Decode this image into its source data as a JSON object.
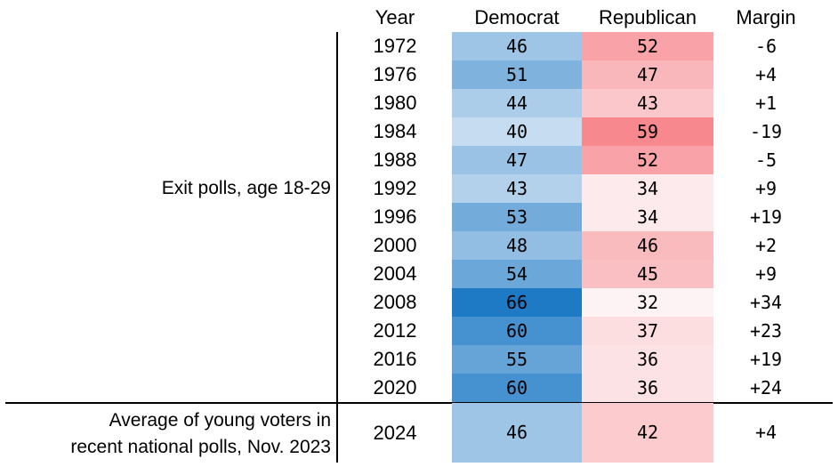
{
  "columns": {
    "year": "Year",
    "dem": "Democrat",
    "rep": "Republican",
    "margin": "Margin"
  },
  "groups": {
    "exit": "Exit polls, age 18-29",
    "recent_line1": "Average of young voters in",
    "recent_line2": "recent national polls, Nov. 2023"
  },
  "colors": {
    "dem_scale": [
      "#c6dcf0",
      "#1f7ac5"
    ],
    "rep_scale": [
      "#fdf2f4",
      "#f7888d"
    ]
  },
  "chart_data": {
    "type": "table",
    "rows": [
      {
        "year": "1972",
        "dem": 46,
        "rep": 52,
        "margin": "-6"
      },
      {
        "year": "1976",
        "dem": 51,
        "rep": 47,
        "margin": "+4"
      },
      {
        "year": "1980",
        "dem": 44,
        "rep": 43,
        "margin": "+1"
      },
      {
        "year": "1984",
        "dem": 40,
        "rep": 59,
        "margin": "-19"
      },
      {
        "year": "1988",
        "dem": 47,
        "rep": 52,
        "margin": "-5"
      },
      {
        "year": "1992",
        "dem": 43,
        "rep": 34,
        "margin": "+9"
      },
      {
        "year": "1996",
        "dem": 53,
        "rep": 34,
        "margin": "+19"
      },
      {
        "year": "2000",
        "dem": 48,
        "rep": 46,
        "margin": "+2"
      },
      {
        "year": "2004",
        "dem": 54,
        "rep": 45,
        "margin": "+9"
      },
      {
        "year": "2008",
        "dem": 66,
        "rep": 32,
        "margin": "+34"
      },
      {
        "year": "2012",
        "dem": 60,
        "rep": 37,
        "margin": "+23"
      },
      {
        "year": "2016",
        "dem": 55,
        "rep": 36,
        "margin": "+19"
      },
      {
        "year": "2020",
        "dem": 60,
        "rep": 36,
        "margin": "+24"
      }
    ],
    "recent": {
      "year": "2024",
      "dem": 46,
      "rep": 42,
      "margin": "+4"
    }
  }
}
